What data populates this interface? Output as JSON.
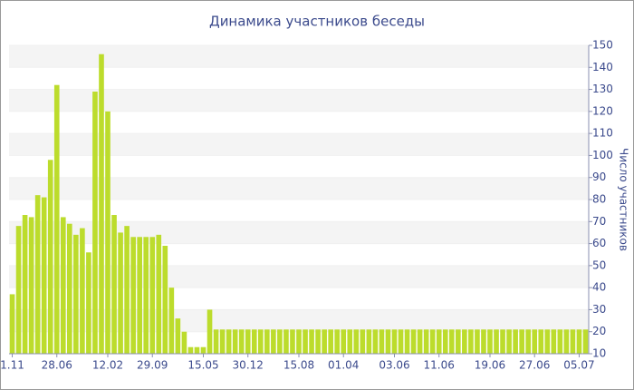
{
  "chart_data": {
    "type": "bar",
    "title": "Динамика участников беседы",
    "y_label": "Число участников",
    "categories": [
      "1.11",
      null,
      null,
      null,
      null,
      null,
      null,
      "28.06",
      null,
      null,
      null,
      null,
      null,
      null,
      null,
      "12.02",
      null,
      null,
      null,
      null,
      null,
      null,
      "29.09",
      null,
      null,
      null,
      null,
      null,
      null,
      null,
      "15.05",
      null,
      null,
      null,
      null,
      null,
      null,
      "30.12",
      null,
      null,
      null,
      null,
      null,
      null,
      null,
      "15.08",
      null,
      null,
      null,
      null,
      null,
      null,
      "01.04",
      null,
      null,
      null,
      null,
      null,
      null,
      null,
      "03.06",
      null,
      null,
      null,
      null,
      null,
      null,
      "11.06",
      null,
      null,
      null,
      null,
      null,
      null,
      null,
      "19.06",
      null,
      null,
      null,
      null,
      null,
      null,
      "27.06",
      null,
      null,
      null,
      null,
      null,
      null,
      "05.07",
      null
    ],
    "values": [
      37,
      68,
      73,
      72,
      82,
      81,
      98,
      132,
      72,
      69,
      64,
      67,
      56,
      129,
      146,
      120,
      73,
      65,
      68,
      63,
      63,
      63,
      63,
      64,
      59,
      40,
      26,
      20,
      13,
      13,
      13,
      30,
      21,
      21,
      21,
      21,
      21,
      21,
      21,
      21,
      21,
      21,
      21,
      21,
      21,
      21,
      21,
      21,
      21,
      21,
      21,
      21,
      21,
      21,
      21,
      21,
      21,
      21,
      21,
      21,
      21,
      21,
      21,
      21,
      21,
      21,
      21,
      21,
      21,
      21,
      21,
      21,
      21,
      21,
      21,
      21,
      21,
      21,
      21,
      21,
      21,
      21,
      21,
      21,
      21,
      21,
      21,
      21,
      21,
      21,
      21
    ],
    "color": "#bcdc2c",
    "ylim": [
      10,
      150
    ],
    "yticks": [
      10,
      20,
      30,
      40,
      50,
      60,
      70,
      80,
      90,
      100,
      110,
      120,
      130,
      140,
      150
    ],
    "grid": true
  }
}
